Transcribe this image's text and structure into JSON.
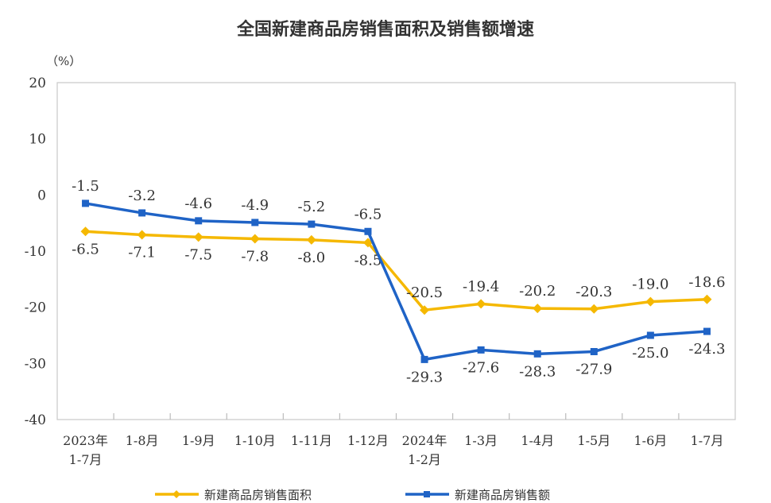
{
  "chart_data": {
    "type": "line",
    "title": "全国新建商品房销售面积及销售额增速",
    "ylabel": "（%）",
    "xlabel": "",
    "ylim": [
      -40,
      20
    ],
    "yticks": [
      20,
      10,
      0,
      -10,
      -20,
      -30,
      -40
    ],
    "categories": [
      [
        "2023年",
        "1-7月"
      ],
      [
        "1-8月"
      ],
      [
        "1-9月"
      ],
      [
        "1-10月"
      ],
      [
        "1-11月"
      ],
      [
        "1-12月"
      ],
      [
        "2024年",
        "1-2月"
      ],
      [
        "1-3月"
      ],
      [
        "1-4月"
      ],
      [
        "1-5月"
      ],
      [
        "1-6月"
      ],
      [
        "1-7月"
      ]
    ],
    "series": [
      {
        "name": "新建商品房销售面积",
        "color": "#F5B800",
        "marker": "diamond",
        "values": [
          -6.5,
          -7.1,
          -7.5,
          -7.8,
          -8.0,
          -8.5,
          -20.5,
          -19.4,
          -20.2,
          -20.3,
          -19.0,
          -18.6
        ]
      },
      {
        "name": "新建商品房销售额",
        "color": "#1F63C6",
        "marker": "square",
        "values": [
          -1.5,
          -3.2,
          -4.6,
          -4.9,
          -5.2,
          -6.5,
          -29.3,
          -27.6,
          -28.3,
          -27.9,
          -25.0,
          -24.3
        ]
      }
    ],
    "grid": false,
    "legend": "bottom"
  }
}
